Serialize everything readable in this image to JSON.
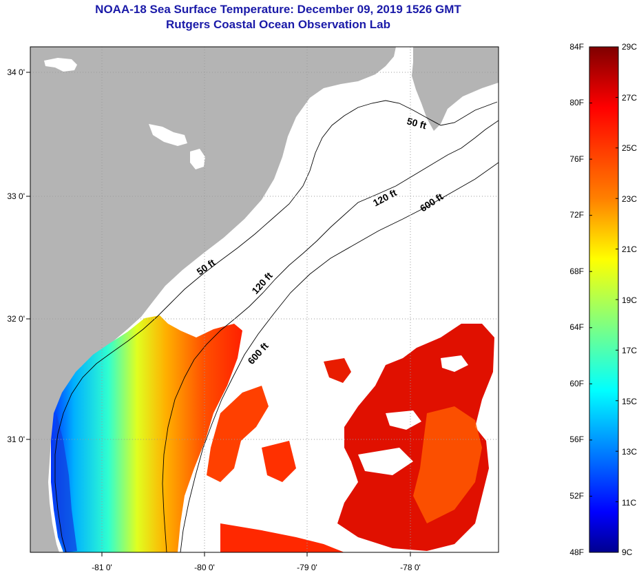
{
  "header": {
    "title": "NOAA-18 Sea Surface Temperature:  December 09, 2019 1526 GMT",
    "subtitle": "Rutgers Coastal Ocean Observation Lab"
  },
  "map": {
    "lon_ticks": [
      "-81 0'",
      "-80 0'",
      "-79 0'",
      "-78 0'"
    ],
    "lat_ticks": [
      "34 0'",
      "33 0'",
      "32 0'",
      "31 0'"
    ],
    "contour_labels": [
      "50 ft",
      "120 ft",
      "600 ft",
      "50 ft",
      "120 ft",
      "600 ft"
    ],
    "colors": {
      "land": "#b4b4b4",
      "missing": "#ffffff"
    }
  },
  "colorbar": {
    "fahrenheit": [
      "84F",
      "80F",
      "76F",
      "72F",
      "68F",
      "64F",
      "60F",
      "56F",
      "52F",
      "48F"
    ],
    "celsius": [
      "29C",
      "27C",
      "25C",
      "23C",
      "21C",
      "19C",
      "17C",
      "15C",
      "13C",
      "11C",
      "9C"
    ],
    "gradient": [
      "#7f0000",
      "#ff0000",
      "#ff8000",
      "#ffff00",
      "#80ff80",
      "#00ffff",
      "#0080ff",
      "#0000ff",
      "#00008f"
    ]
  }
}
